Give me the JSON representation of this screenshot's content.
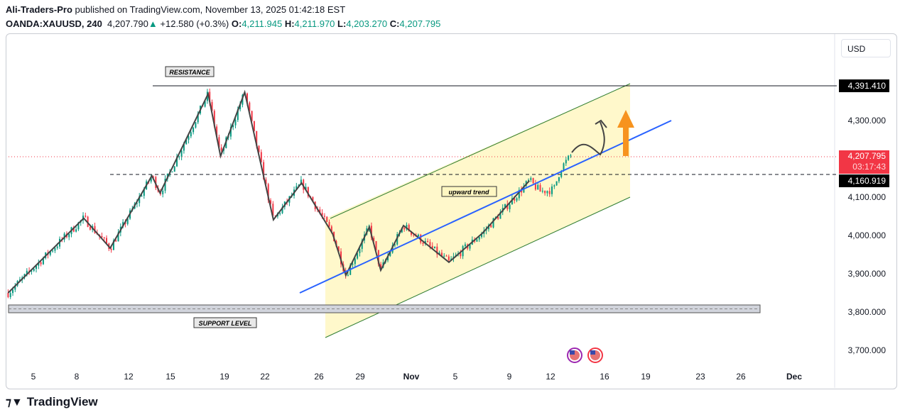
{
  "header": {
    "author": "Ali-Traders-Pro",
    "published": "published on TradingView.com, November 13, 2025 01:42:18 EST",
    "symbol": "OANDA:XAUUSD, 240",
    "last": "4,207.790",
    "change": "+12.580 (+0.3%)",
    "o_label": "O:",
    "o": "4,211.945",
    "h_label": "H:",
    "h": "4,211.970",
    "l_label": "L:",
    "l": "4,203.270",
    "c_label": "C:",
    "c": "4,207.795"
  },
  "currency": "USD",
  "footer": {
    "brand": "TradingView"
  },
  "colors": {
    "up": "#089981",
    "down": "#f23645",
    "trend": "#2962ff",
    "channel": "#fff7c2",
    "arrow": "#f7931e"
  },
  "chart_data": {
    "type": "candlestick",
    "timeframe": "240",
    "y_ticks": [
      3700,
      3800,
      3900,
      4000,
      4100,
      4300
    ],
    "y_tick_labels": [
      "3,700.000",
      "3,800.000",
      "3,900.000",
      "4,000.000",
      "4,100.000",
      "4,300.000"
    ],
    "ylim": [
      3640,
      4500
    ],
    "x_ticks": [
      {
        "date": "2025-10-05",
        "label": "5"
      },
      {
        "date": "2025-10-08",
        "label": "8"
      },
      {
        "date": "2025-10-12",
        "label": "12"
      },
      {
        "date": "2025-10-15",
        "label": "15"
      },
      {
        "date": "2025-10-19",
        "label": "19"
      },
      {
        "date": "2025-10-22",
        "label": "22"
      },
      {
        "date": "2025-10-26",
        "label": "26"
      },
      {
        "date": "2025-10-29",
        "label": "29"
      },
      {
        "date": "2025-11-01",
        "label": "Nov"
      },
      {
        "date": "2025-11-05",
        "label": "5"
      },
      {
        "date": "2025-11-09",
        "label": "9"
      },
      {
        "date": "2025-11-12",
        "label": "12"
      },
      {
        "date": "2025-11-16",
        "label": "16"
      },
      {
        "date": "2025-11-19",
        "label": "19"
      },
      {
        "date": "2025-11-23",
        "label": "23"
      },
      {
        "date": "2025-11-26",
        "label": "26"
      },
      {
        "date": "2025-12-01",
        "label": "Dec"
      }
    ],
    "price_path": [
      [
        "2025-10-03T06:00",
        3850
      ],
      [
        "2025-10-08T13:00",
        4045
      ],
      [
        "2025-10-10T14:00",
        3967
      ],
      [
        "2025-10-13T16:00",
        4156
      ],
      [
        "2025-10-14T06:00",
        4111
      ],
      [
        "2025-10-17T19:00",
        4370
      ],
      [
        "2025-10-18T17:00",
        4207
      ],
      [
        "2025-10-20T12:00",
        4374
      ],
      [
        "2025-10-22T15:00",
        4041
      ],
      [
        "2025-10-24T17:00",
        4137
      ],
      [
        "2025-10-27T00:00",
        4004
      ],
      [
        "2025-10-27T23:00",
        3896
      ],
      [
        "2025-10-29T13:00",
        4022
      ],
      [
        "2025-10-30T05:00",
        3909
      ],
      [
        "2025-10-31T13:00",
        4026
      ],
      [
        "2025-11-04T10:00",
        3930
      ],
      [
        "2025-11-07T01:00",
        4007
      ],
      [
        "2025-11-10T11:00",
        4143
      ],
      [
        "2025-11-11T06:00",
        4115
      ],
      [
        "2025-11-12T06:00",
        4120
      ],
      [
        "2025-11-12T18:00",
        4175
      ],
      [
        "2025-11-13T12:00",
        4208
      ]
    ],
    "levels": {
      "resistance": {
        "price": 4391.41,
        "label": "4,391.410",
        "text": "RESISTANCE"
      },
      "support": {
        "price_range": [
          3800,
          3820
        ],
        "text": "SUPPORT LEVEL"
      },
      "current": {
        "price": 4207.795,
        "label": "4,207.795",
        "countdown": "03:17:43"
      },
      "dashed": {
        "price": 4160.919,
        "label": "4,160.919"
      }
    },
    "annotations": {
      "channel": "upward trend"
    }
  }
}
